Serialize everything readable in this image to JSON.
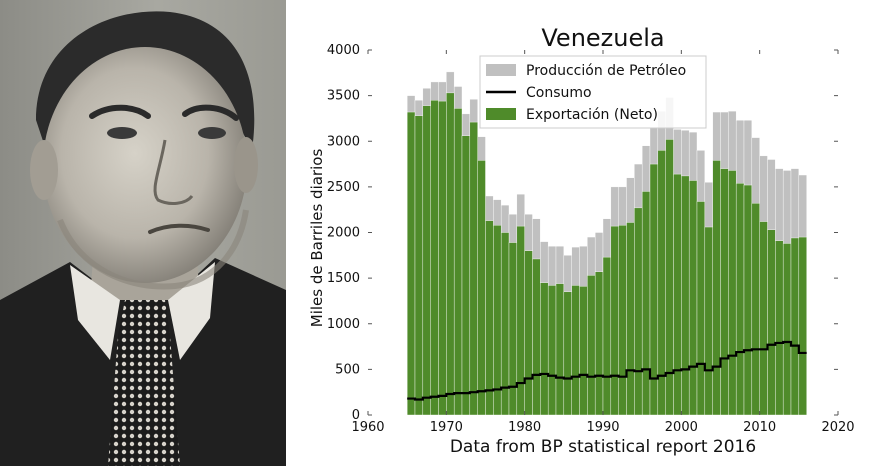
{
  "chart_data": {
    "type": "bar",
    "title": "Venezuela",
    "xlabel": "Data from BP statistical report 2016",
    "ylabel": "Miles de Barriles diarios",
    "xlim": [
      1960,
      2020
    ],
    "ylim": [
      0,
      4000
    ],
    "xticks": [
      "1960",
      "1970",
      "1980",
      "1990",
      "2000",
      "2010",
      "2020"
    ],
    "yticks": [
      "0",
      "500",
      "1000",
      "1500",
      "2000",
      "2500",
      "3000",
      "3500",
      "4000"
    ],
    "grid": false,
    "legend_position": "top-center",
    "colors": {
      "production": "#c0c0c0",
      "exports": "#4f8b2a",
      "consumption": "#000000"
    },
    "years": [
      1965,
      1966,
      1967,
      1968,
      1969,
      1970,
      1971,
      1972,
      1973,
      1974,
      1975,
      1976,
      1977,
      1978,
      1979,
      1980,
      1981,
      1982,
      1983,
      1984,
      1985,
      1986,
      1987,
      1988,
      1989,
      1990,
      1991,
      1992,
      1993,
      1994,
      1995,
      1996,
      1997,
      1998,
      1999,
      2000,
      2001,
      2002,
      2003,
      2004,
      2005,
      2006,
      2007,
      2008,
      2009,
      2010,
      2011,
      2012,
      2013,
      2014,
      2015
    ],
    "series": [
      {
        "name": "Producción de Petróleo",
        "kind": "bar",
        "values": [
          3500,
          3450,
          3580,
          3650,
          3650,
          3760,
          3600,
          3300,
          3460,
          3050,
          2400,
          2360,
          2300,
          2200,
          2420,
          2200,
          2150,
          1900,
          1850,
          1850,
          1750,
          1840,
          1850,
          1950,
          2000,
          2150,
          2500,
          2500,
          2600,
          2750,
          2950,
          3150,
          3330,
          3480,
          3130,
          3120,
          3100,
          2900,
          2550,
          3320,
          3320,
          3330,
          3230,
          3230,
          3040,
          2840,
          2800,
          2700,
          2680,
          2700,
          2630
        ]
      },
      {
        "name": "Consumo",
        "kind": "step",
        "values": [
          180,
          170,
          190,
          200,
          210,
          230,
          240,
          240,
          250,
          260,
          270,
          280,
          300,
          310,
          350,
          400,
          440,
          450,
          430,
          410,
          400,
          420,
          440,
          420,
          430,
          420,
          430,
          420,
          490,
          480,
          500,
          400,
          430,
          460,
          490,
          500,
          530,
          560,
          490,
          530,
          620,
          650,
          690,
          710,
          720,
          720,
          770,
          790,
          800,
          760,
          680
        ]
      },
      {
        "name": "Exportación (Neto)",
        "kind": "bar",
        "values": [
          3320,
          3280,
          3390,
          3450,
          3440,
          3530,
          3360,
          3060,
          3210,
          2790,
          2130,
          2080,
          2000,
          1890,
          2070,
          1800,
          1710,
          1450,
          1420,
          1440,
          1350,
          1420,
          1410,
          1530,
          1570,
          1730,
          2070,
          2080,
          2110,
          2270,
          2450,
          2750,
          2900,
          3020,
          2640,
          2620,
          2570,
          2340,
          2060,
          2790,
          2700,
          2680,
          2540,
          2520,
          2320,
          2120,
          2030,
          1910,
          1880,
          1940,
          1950
        ]
      }
    ]
  }
}
